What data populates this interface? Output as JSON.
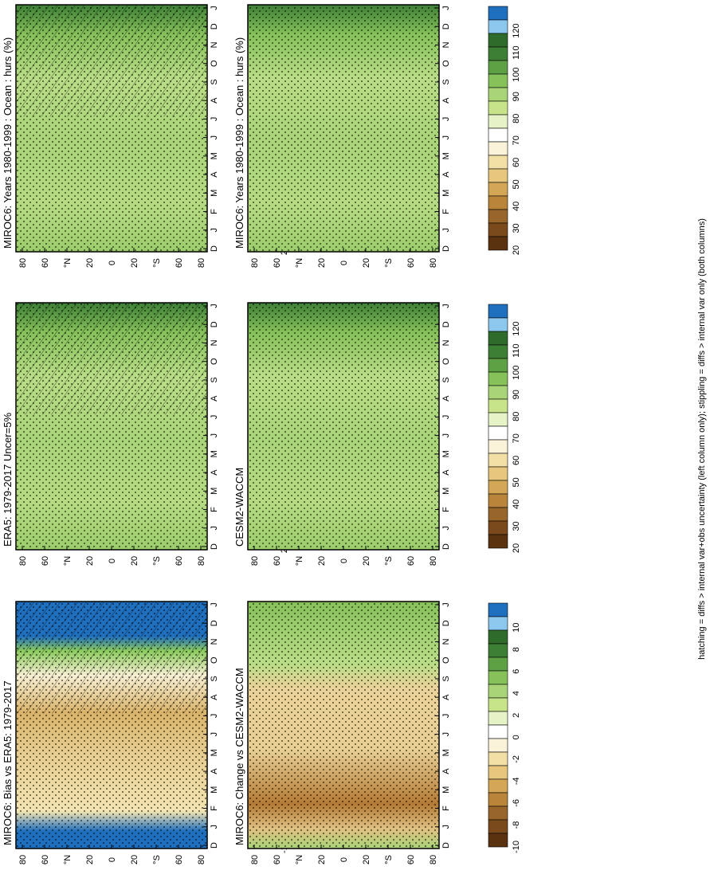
{
  "footer": "hatching = diffs > internal var+obs uncertainty (left column only); stippling = diffs > internal var only (both columns)",
  "colors": {
    "blue_dark": "#1f6fbf",
    "blue_light": "#8cc8ee",
    "green_dark": "#2f6b2a",
    "green_light": "#c8e48a",
    "white": "#ffffff",
    "tan_light": "#f2dfa6",
    "brown_dark": "#5a3210"
  },
  "chart_data": [
    {
      "type": "heatmap",
      "title": "MIROC6: Years 1980-1999 : Ocean : hurs (%)",
      "xlabel": "",
      "ylabel": "",
      "x_ticks": [
        "D",
        "J",
        "F",
        "M",
        "A",
        "M",
        "J",
        "J",
        "A",
        "S",
        "O",
        "N",
        "D",
        "J"
      ],
      "y_ticks": [
        "80",
        "60",
        "°N",
        "20",
        "0",
        "20",
        "°S",
        "60",
        "80"
      ],
      "colorbar": [
        "120",
        "110",
        "100",
        "90",
        "80",
        "70",
        "60",
        "50",
        "40",
        "30",
        "20"
      ],
      "grid": false
    },
    {
      "type": "heatmap",
      "title": "MIROC6: Years 1980-1999 : Ocean : hurs (%)",
      "xlabel": "",
      "ylabel": "",
      "x_ticks": [
        "D",
        "J",
        "F",
        "M",
        "A",
        "M",
        "J",
        "J",
        "A",
        "S",
        "O",
        "N",
        "D",
        "J"
      ],
      "y_ticks": [
        "80",
        "60",
        "°N",
        "20",
        "0",
        "20",
        "°S",
        "60",
        "80"
      ],
      "colorbar": [
        "120",
        "110",
        "100",
        "90",
        "80",
        "70",
        "60",
        "50",
        "40",
        "30",
        "20"
      ],
      "grid": false
    },
    {
      "type": "heatmap",
      "title": "ERA5: 1979-2017 Uncer=5%",
      "xlabel": "",
      "ylabel": "",
      "x_ticks": [
        "D",
        "J",
        "F",
        "M",
        "A",
        "M",
        "J",
        "J",
        "A",
        "S",
        "O",
        "N",
        "D",
        "J"
      ],
      "y_ticks": [
        "80",
        "60",
        "°N",
        "20",
        "0",
        "20",
        "°S",
        "60",
        "80"
      ],
      "colorbar": [
        "120",
        "110",
        "100",
        "90",
        "80",
        "70",
        "60",
        "50",
        "40",
        "30",
        "20"
      ],
      "grid": false
    },
    {
      "type": "heatmap",
      "title": "CESM2-WACCM",
      "xlabel": "",
      "ylabel": "",
      "x_ticks": [
        "D",
        "J",
        "F",
        "M",
        "A",
        "M",
        "J",
        "J",
        "A",
        "S",
        "O",
        "N",
        "D",
        "J"
      ],
      "y_ticks": [
        "80",
        "60",
        "°N",
        "20",
        "0",
        "20",
        "°S",
        "60",
        "80"
      ],
      "colorbar": [
        "120",
        "110",
        "100",
        "90",
        "80",
        "70",
        "60",
        "50",
        "40",
        "30",
        "20"
      ],
      "grid": false
    },
    {
      "type": "heatmap",
      "title": "MIROC6: Bias vs ERA5: 1979-2017",
      "xlabel": "",
      "ylabel": "",
      "x_ticks": [
        "D",
        "J",
        "F",
        "M",
        "A",
        "M",
        "J",
        "J",
        "A",
        "S",
        "O",
        "N",
        "D",
        "J"
      ],
      "y_ticks": [
        "80",
        "60",
        "°N",
        "20",
        "0",
        "20",
        "°S",
        "60",
        "80"
      ],
      "colorbar": [
        "10",
        "8",
        "6",
        "4",
        "2",
        "0",
        "-2",
        "-4",
        "-6",
        "-8",
        "-10"
      ],
      "grid": false
    },
    {
      "type": "heatmap",
      "title": "MIROC6: Change vs CESM2-WACCM",
      "xlabel": "",
      "ylabel": "",
      "x_ticks": [
        "D",
        "J",
        "F",
        "M",
        "A",
        "M",
        "J",
        "J",
        "A",
        "S",
        "O",
        "N",
        "D",
        "J"
      ],
      "y_ticks": [
        "80",
        "60",
        "°N",
        "20",
        "0",
        "20",
        "°S",
        "60",
        "80"
      ],
      "colorbar": [
        "10",
        "8",
        "6",
        "4",
        "2",
        "0",
        "-2",
        "-4",
        "-6",
        "-8",
        "-10"
      ],
      "grid": false
    }
  ]
}
